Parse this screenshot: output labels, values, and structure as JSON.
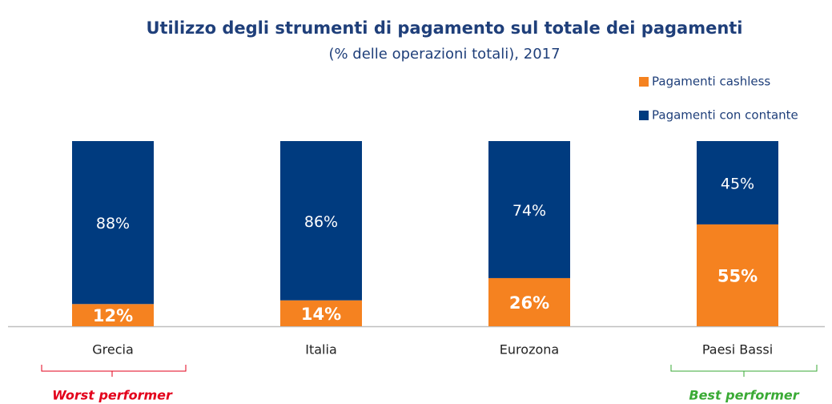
{
  "chart_data": {
    "type": "stacked_bar",
    "title": "Utilizzo degli strumenti di pagamento sul totale dei pagamenti",
    "subtitle": "(% delle operazioni totali), 2017",
    "categories": [
      "Grecia",
      "Italia",
      "Eurozona",
      "Paesi Bassi"
    ],
    "series": [
      {
        "name": "Pagamenti cashless",
        "color": "#f58220",
        "values": [
          12,
          14,
          26,
          55
        ],
        "value_labels": [
          "12%",
          "14%",
          "26%",
          "55%"
        ]
      },
      {
        "name": "Pagamenti con contante",
        "color": "#003b7f",
        "values": [
          88,
          86,
          74,
          45
        ],
        "value_labels": [
          "88%",
          "86%",
          "74%",
          "45%"
        ]
      }
    ],
    "ylim": [
      0,
      100
    ],
    "legend": "top-right",
    "annotations": [
      {
        "text": "Worst performer",
        "color": "#e3001b"
      },
      {
        "text": "Best performer",
        "color": "#3aaa35"
      }
    ]
  }
}
